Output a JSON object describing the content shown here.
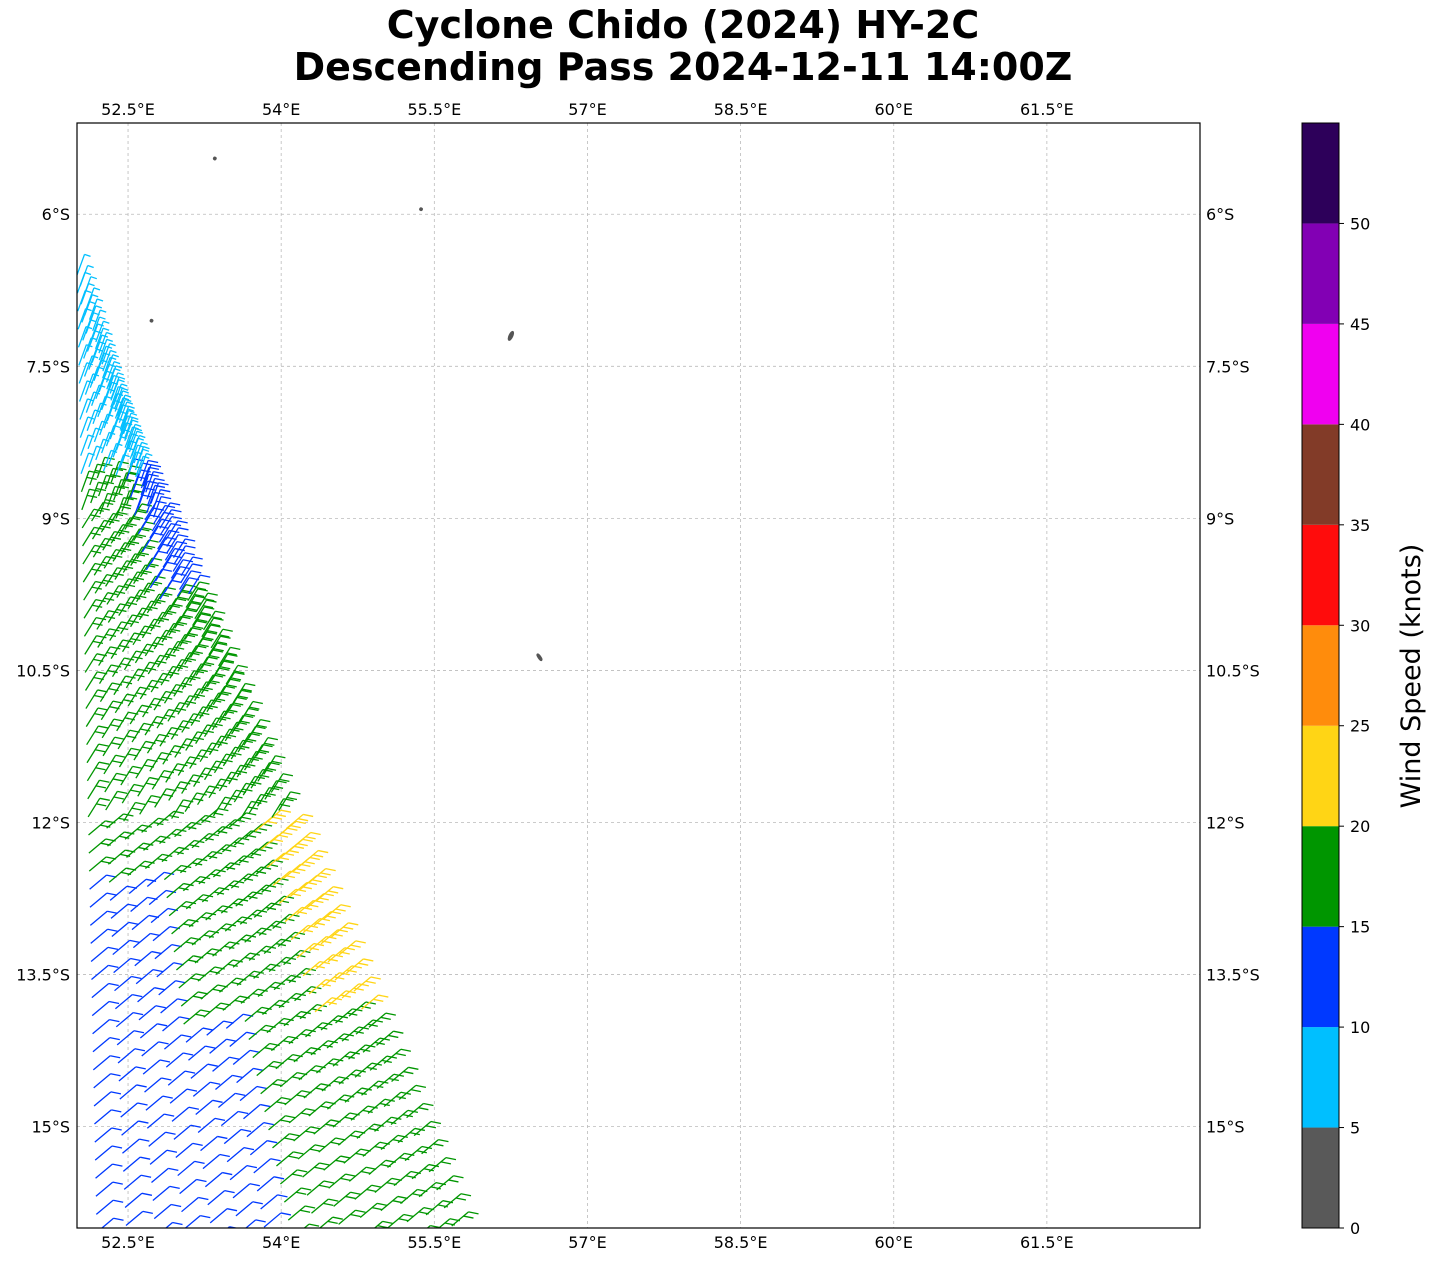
{
  "title": {
    "line1": "Cyclone Chido (2024) HY-2C",
    "line2": "Descending Pass 2024-12-11 14:00Z"
  },
  "map": {
    "lon_range": [
      52.0,
      63.0
    ],
    "lat_range": [
      -16.0,
      -5.1
    ],
    "lon_ticks": [
      {
        "value": 52.5,
        "label": "52.5°E"
      },
      {
        "value": 54.0,
        "label": "54°E"
      },
      {
        "value": 55.5,
        "label": "55.5°E"
      },
      {
        "value": 57.0,
        "label": "57°E"
      },
      {
        "value": 58.5,
        "label": "58.5°E"
      },
      {
        "value": 60.0,
        "label": "60°E"
      },
      {
        "value": 61.5,
        "label": "61.5°E"
      }
    ],
    "lat_ticks": [
      {
        "value": -6.0,
        "label": "6°S"
      },
      {
        "value": -7.5,
        "label": "7.5°S"
      },
      {
        "value": -9.0,
        "label": "9°S"
      },
      {
        "value": -10.5,
        "label": "10.5°S"
      },
      {
        "value": -12.0,
        "label": "12°S"
      },
      {
        "value": -13.5,
        "label": "13.5°S"
      },
      {
        "value": -15.0,
        "label": "15°S"
      }
    ],
    "gridlines": true,
    "islands": [
      {
        "lon": 53.35,
        "lat": -5.45
      },
      {
        "lon": 55.37,
        "lat": -5.95
      },
      {
        "lon": 52.73,
        "lat": -7.05
      },
      {
        "lon": 56.25,
        "lat": -7.2
      },
      {
        "lon": 56.53,
        "lat": -10.37
      }
    ],
    "land_color": "#555555"
  },
  "colorbar": {
    "title": "Wind Speed (knots)",
    "min": 0,
    "max": 55,
    "bins": [
      {
        "from": 0,
        "to": 5,
        "color": "#595959"
      },
      {
        "from": 5,
        "to": 10,
        "color": "#00bfff"
      },
      {
        "from": 10,
        "to": 15,
        "color": "#0039ff"
      },
      {
        "from": 15,
        "to": 20,
        "color": "#009600"
      },
      {
        "from": 20,
        "to": 25,
        "color": "#ffd515"
      },
      {
        "from": 25,
        "to": 30,
        "color": "#ff8c0c"
      },
      {
        "from": 30,
        "to": 35,
        "color": "#ff0c0c"
      },
      {
        "from": 35,
        "to": 40,
        "color": "#823b28"
      },
      {
        "from": 40,
        "to": 45,
        "color": "#f000f0"
      },
      {
        "from": 45,
        "to": 50,
        "color": "#8200b4"
      },
      {
        "from": 50,
        "to": 55,
        "color": "#2d005a"
      }
    ],
    "tick_labels": [
      "0",
      "5",
      "10",
      "15",
      "20",
      "25",
      "30",
      "35",
      "40",
      "45",
      "50"
    ]
  },
  "swath": {
    "description_type": "wind barbs",
    "columns": 15,
    "rows": 56,
    "left_edge_nw": {
      "lon": 52.0,
      "lat": -6.6
    },
    "right_edge_nw": {
      "lon": 52.7,
      "lat": -8.2
    },
    "left_edge_se": {
      "lon": 52.2,
      "lat": -16.4
    },
    "right_edge_se": {
      "lon": 56.2,
      "lat": -16.4
    },
    "speed_regions": [
      {
        "name": "north-light",
        "speed": 8
      },
      {
        "name": "north-moderate",
        "speed": 12
      },
      {
        "name": "central",
        "speed": 17
      },
      {
        "name": "east-strong",
        "speed": 22
      },
      {
        "name": "south-west",
        "speed": 12
      }
    ]
  }
}
